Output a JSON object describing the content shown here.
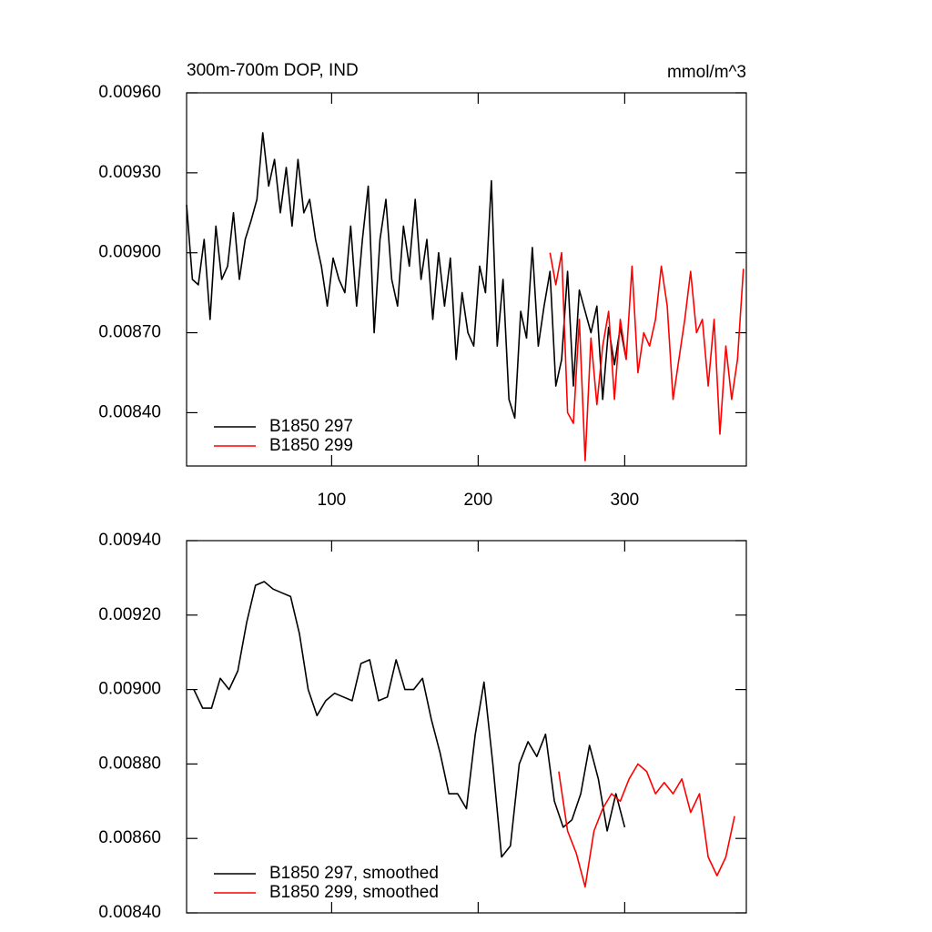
{
  "chart_data": [
    {
      "type": "line",
      "title": "300m-700m DOP, IND",
      "units": "mmol/m^3",
      "xlim": [
        1,
        383
      ],
      "xticks": [
        100,
        200,
        300
      ],
      "show_xtick_labels": true,
      "ylim": [
        0.0082,
        0.0096
      ],
      "yticks": [
        {
          "value": 0.0096,
          "label": "0.00960"
        },
        {
          "value": 0.0093,
          "label": "0.00930"
        },
        {
          "value": 0.009,
          "label": "0.00900"
        },
        {
          "value": 0.0087,
          "label": "0.00870"
        },
        {
          "value": 0.0084,
          "label": "0.00840"
        }
      ],
      "legend": "lower left",
      "series": [
        {
          "name": "B1850 297",
          "color": "#000000",
          "x": [
            1,
            5,
            9,
            13,
            17,
            21,
            25,
            29,
            33,
            37,
            41,
            45,
            49,
            53,
            57,
            61,
            65,
            69,
            73,
            77,
            81,
            85,
            89,
            93,
            97,
            101,
            105,
            109,
            113,
            117,
            121,
            125,
            129,
            133,
            137,
            141,
            145,
            149,
            153,
            157,
            161,
            165,
            169,
            173,
            177,
            181,
            185,
            189,
            193,
            197,
            201,
            205,
            209,
            213,
            217,
            221,
            225,
            229,
            233,
            237,
            241,
            245,
            249,
            253,
            257,
            261,
            265,
            269,
            273,
            277,
            281,
            285,
            289,
            293,
            297,
            301
          ],
          "values": [
            0.00918,
            0.0089,
            0.00888,
            0.00905,
            0.00875,
            0.0091,
            0.0089,
            0.00895,
            0.00915,
            0.0089,
            0.00905,
            0.00912,
            0.0092,
            0.00945,
            0.00925,
            0.00935,
            0.00915,
            0.00932,
            0.0091,
            0.00935,
            0.00915,
            0.0092,
            0.00905,
            0.00895,
            0.0088,
            0.00898,
            0.0089,
            0.00885,
            0.0091,
            0.0088,
            0.00905,
            0.00925,
            0.0087,
            0.00905,
            0.0092,
            0.0089,
            0.0088,
            0.0091,
            0.00895,
            0.0092,
            0.0089,
            0.00905,
            0.00875,
            0.009,
            0.0088,
            0.00898,
            0.0086,
            0.00885,
            0.0087,
            0.00865,
            0.00895,
            0.00885,
            0.00927,
            0.00865,
            0.0089,
            0.00845,
            0.00838,
            0.00878,
            0.00868,
            0.00902,
            0.00865,
            0.0088,
            0.00893,
            0.0085,
            0.0086,
            0.00893,
            0.0085,
            0.00886,
            0.00878,
            0.0087,
            0.0088,
            0.00845,
            0.00872,
            0.00858,
            0.00872,
            0.0086
          ]
        },
        {
          "name": "B1850 299",
          "color": "#ff0000",
          "x": [
            249,
            253,
            257,
            261,
            265,
            269,
            273,
            277,
            281,
            285,
            289,
            293,
            297,
            301,
            305,
            309,
            313,
            317,
            321,
            325,
            329,
            333,
            337,
            341,
            345,
            349,
            353,
            357,
            361,
            365,
            369,
            373,
            377,
            381
          ],
          "values": [
            0.009,
            0.00888,
            0.009,
            0.0084,
            0.00836,
            0.00875,
            0.00822,
            0.00868,
            0.00843,
            0.00865,
            0.00878,
            0.00845,
            0.00875,
            0.0086,
            0.00895,
            0.00855,
            0.0087,
            0.00865,
            0.00875,
            0.00895,
            0.0088,
            0.00845,
            0.0086,
            0.00875,
            0.00893,
            0.0087,
            0.00875,
            0.0085,
            0.00875,
            0.00832,
            0.00865,
            0.00845,
            0.0086,
            0.00894
          ]
        }
      ]
    },
    {
      "type": "line",
      "xlim": [
        1,
        383
      ],
      "xticks": [
        100,
        200,
        300
      ],
      "show_xtick_labels": false,
      "ylim": [
        0.0084,
        0.0094
      ],
      "yticks": [
        {
          "value": 0.0094,
          "label": "0.00940"
        },
        {
          "value": 0.0092,
          "label": "0.00920"
        },
        {
          "value": 0.009,
          "label": "0.00900"
        },
        {
          "value": 0.0088,
          "label": "0.00880"
        },
        {
          "value": 0.0086,
          "label": "0.00860"
        },
        {
          "value": 0.0084,
          "label": "0.00840"
        }
      ],
      "legend": "lower left",
      "series": [
        {
          "name": "B1850 297, smoothed",
          "color": "#000000",
          "x": [
            6,
            12,
            18,
            24,
            30,
            36,
            42,
            48,
            54,
            60,
            66,
            72,
            78,
            84,
            90,
            96,
            102,
            108,
            114,
            120,
            126,
            132,
            138,
            144,
            150,
            156,
            162,
            168,
            174,
            180,
            186,
            192,
            198,
            204,
            210,
            216,
            222,
            228,
            234,
            240,
            246,
            252,
            258,
            264,
            270,
            276,
            282,
            288,
            294,
            300
          ],
          "values": [
            0.009,
            0.00895,
            0.00895,
            0.00903,
            0.009,
            0.00905,
            0.00918,
            0.00928,
            0.00929,
            0.00927,
            0.00926,
            0.00925,
            0.00915,
            0.009,
            0.00893,
            0.00897,
            0.00899,
            0.00898,
            0.00897,
            0.00907,
            0.00908,
            0.00897,
            0.00898,
            0.00908,
            0.009,
            0.009,
            0.00903,
            0.00892,
            0.00883,
            0.00872,
            0.00872,
            0.00868,
            0.00888,
            0.00902,
            0.0088,
            0.00855,
            0.00858,
            0.0088,
            0.00886,
            0.00882,
            0.00888,
            0.0087,
            0.00863,
            0.00865,
            0.00872,
            0.00885,
            0.00876,
            0.00862,
            0.00872,
            0.00863
          ]
        },
        {
          "name": "B1850 299, smoothed",
          "color": "#ff0000",
          "x": [
            255,
            261,
            267,
            273,
            279,
            285,
            291,
            297,
            303,
            309,
            315,
            321,
            327,
            333,
            339,
            345,
            351,
            357,
            363,
            369,
            375
          ],
          "values": [
            0.00878,
            0.00862,
            0.00856,
            0.00847,
            0.00862,
            0.00868,
            0.00872,
            0.0087,
            0.00876,
            0.0088,
            0.00878,
            0.00872,
            0.00875,
            0.00872,
            0.00876,
            0.00867,
            0.00872,
            0.00855,
            0.0085,
            0.00855,
            0.00866
          ]
        }
      ]
    }
  ]
}
